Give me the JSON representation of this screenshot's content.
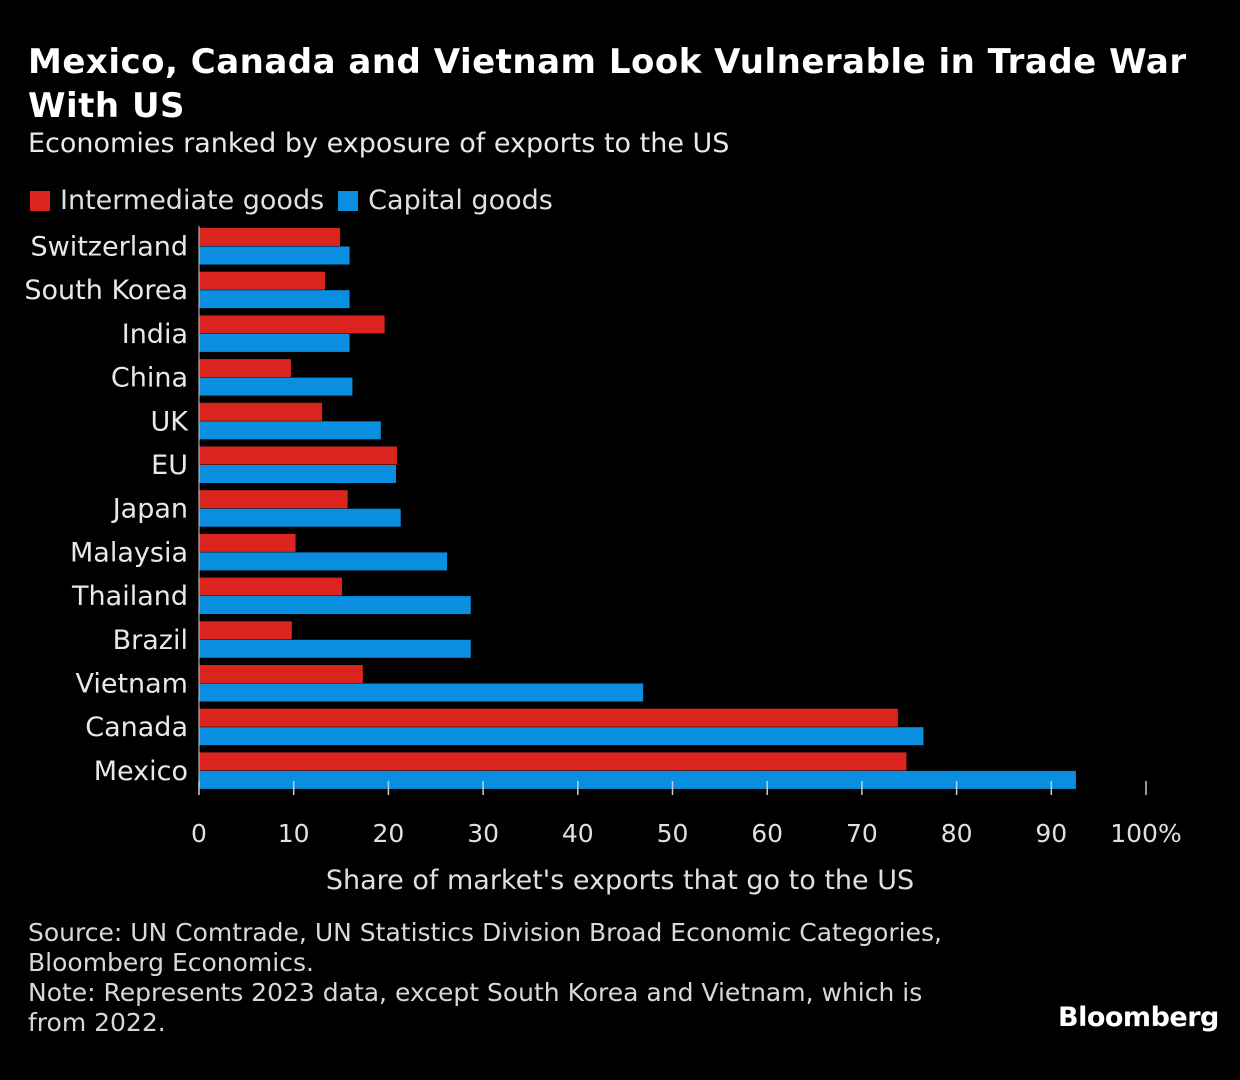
{
  "title": "Mexico, Canada and Vietnam Look Vulnerable in Trade War With US",
  "subtitle": "Economies ranked by exposure of exports to the US",
  "source": "Source: UN Comtrade, UN Statistics Division Broad Economic Categories, Bloomberg Economics.",
  "note": "Note: Represents 2023 data, except South Korea and Vietnam, which is from 2022.",
  "logo": "Bloomberg",
  "colors": {
    "intermediate": "#dc241f",
    "capital": "#0a8ee0",
    "background": "#000000"
  },
  "chart_data": {
    "type": "bar",
    "orientation": "horizontal",
    "categories": [
      "Switzerland",
      "South Korea",
      "India",
      "China",
      "UK",
      "EU",
      "Japan",
      "Malaysia",
      "Thailand",
      "Brazil",
      "Vietnam",
      "Canada",
      "Mexico"
    ],
    "series": [
      {
        "name": "Intermediate goods",
        "color": "#dc241f",
        "values": [
          14.9,
          13.3,
          19.6,
          9.7,
          13.0,
          20.9,
          15.7,
          10.2,
          15.1,
          9.8,
          17.3,
          73.8,
          74.7
        ]
      },
      {
        "name": "Capital goods",
        "color": "#0a8ee0",
        "values": [
          15.9,
          15.9,
          15.9,
          16.2,
          19.2,
          20.8,
          21.3,
          26.2,
          28.7,
          28.7,
          46.9,
          76.5,
          92.6
        ]
      }
    ],
    "xlabel": "Share of market's exports that go to the US",
    "xlim": [
      0,
      100
    ],
    "xticks": [
      "0",
      "10",
      "20",
      "30",
      "40",
      "50",
      "60",
      "70",
      "80",
      "90",
      "100%"
    ],
    "grid": false,
    "legend": "top-left"
  }
}
